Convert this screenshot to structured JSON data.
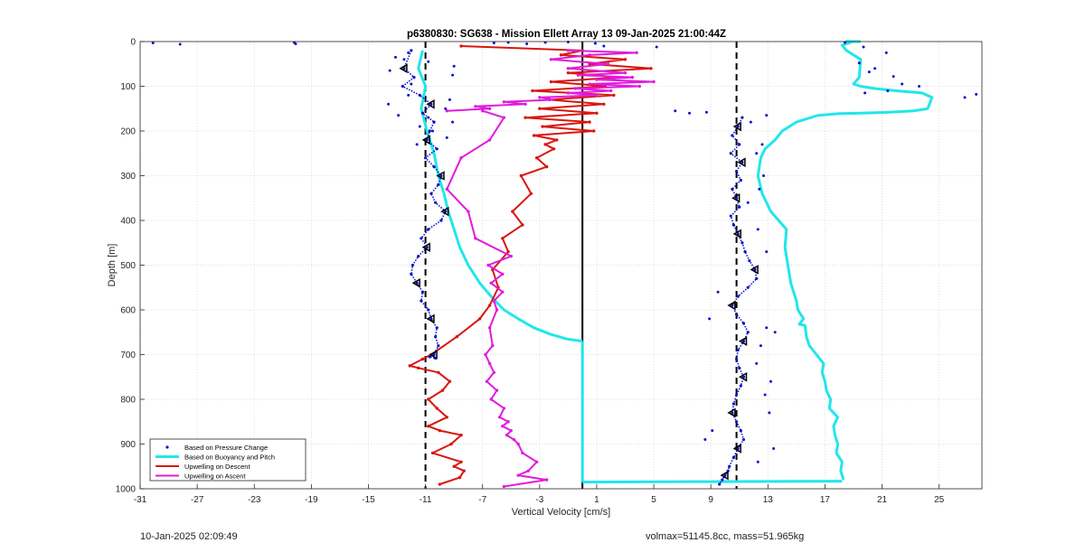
{
  "chart_data": {
    "type": "line",
    "title": "p6380830: SG638 - Mission Ellett Array 13 09-Jan-2025 21:00:44Z",
    "xlabel": "Vertical Velocity [cm/s]",
    "ylabel": "Depth [m]",
    "xlim": [
      -31,
      28
    ],
    "ylim": [
      0,
      1000
    ],
    "y_reversed": true,
    "xticks": [
      -31,
      -27,
      -23,
      -19,
      -15,
      -11,
      -7,
      -3,
      1,
      5,
      9,
      13,
      17,
      21,
      25
    ],
    "yticks": [
      0,
      100,
      200,
      300,
      400,
      500,
      600,
      700,
      800,
      900,
      1000
    ],
    "grid": "dotted",
    "legend_position": "bottom-left",
    "reference_lines": [
      {
        "x": -11,
        "style": "dashed",
        "color": "#000000"
      },
      {
        "x": 10.8,
        "style": "dashed",
        "color": "#000000"
      },
      {
        "x": 0,
        "style": "solid",
        "color": "#000000"
      }
    ],
    "series": [
      {
        "name": "Based on Pressure Change",
        "style": "dots",
        "color": "#0a14c8",
        "groups": [
          {
            "x": [
              -12,
              -12.5,
              -11.8,
              -12.6,
              -11.4,
              -10.6,
              -11.2,
              -10.4,
              -10.7,
              -10.9,
              -10.2,
              -11,
              -10.4,
              -9.9,
              -10.1,
              -10.6,
              -10.3,
              -9.6,
              -9.9,
              -10.8,
              -11.3,
              -10.9,
              -11.5,
              -11.9,
              -12,
              -11.6,
              -11.2,
              -11.3,
              -10.8,
              -10.6,
              -10.2,
              -10.3,
              -10.1,
              -10.4,
              -10.7,
              -10.3
            ],
            "y": [
              20,
              60,
              80,
              100,
              120,
              140,
              160,
              180,
              200,
              220,
              240,
              260,
              280,
              300,
              320,
              340,
              360,
              380,
              400,
              420,
              440,
              460,
              480,
              500,
              520,
              540,
              560,
              580,
              600,
              620,
              640,
              660,
              680,
              700,
              705,
              708
            ]
          },
          {
            "x": [
              11.2,
              10.9,
              10.5,
              11,
              10.4,
              11.2,
              10.8,
              11.1,
              10.5,
              10.8,
              11,
              10.4,
              10.6,
              10.9,
              11.2,
              11.4,
              11.7,
              12.1,
              12.2,
              11.6,
              10.9,
              10.5,
              10.8,
              11.3,
              11.6,
              11.3,
              10.9,
              10.8,
              11,
              11.3,
              11.1,
              10.8,
              10.6,
              10.5,
              10.8,
              11.1,
              11.3,
              10.9,
              10.6,
              10.3,
              10.2,
              10,
              9.8,
              9.6
            ],
            "y": [
              170,
              190,
              210,
              230,
              250,
              270,
              290,
              310,
              330,
              350,
              370,
              390,
              410,
              430,
              450,
              470,
              490,
              510,
              530,
              550,
              570,
              590,
              610,
              630,
              650,
              670,
              690,
              710,
              730,
              750,
              770,
              790,
              810,
              830,
              850,
              870,
              890,
              910,
              930,
              950,
              960,
              970,
              980,
              990
            ]
          }
        ],
        "scattered": {
          "x": [
            -30.1,
            -28.2,
            -20.2,
            -20.1,
            -12.5,
            -13.1,
            -13.5,
            -9,
            -12.2,
            -13.6,
            -12.9,
            -11.4,
            -9.3,
            -9.6,
            -10.8,
            -9.1,
            -10.5,
            -9.5,
            -11.6,
            -10.8,
            -12.2,
            -9.1,
            -12,
            -6.2,
            -5.2,
            -3.9,
            -2.6,
            -1,
            0.9,
            1.5,
            5.2,
            6.5,
            7.5,
            8.7,
            12.9,
            11.8,
            12.6,
            12.2,
            12.7,
            12.4,
            11.6,
            12.3,
            12.9,
            9.5,
            8.9,
            12.9,
            13.5,
            12.5,
            12.2,
            13.2,
            12.8,
            13.1,
            9.1,
            8.6,
            13.4,
            12.3,
            18.4,
            19.7,
            19.4,
            20.1,
            21.3,
            20.5,
            21.8,
            22.4,
            21.4,
            19.8,
            23.6,
            26.8,
            27.6
          ],
          "y": [
            3,
            6,
            2,
            5,
            40,
            35,
            65,
            55,
            120,
            140,
            165,
            190,
            130,
            150,
            170,
            180,
            200,
            215,
            230,
            45,
            25,
            75,
            95,
            3,
            2,
            5,
            2,
            1,
            4,
            10,
            12,
            155,
            160,
            158,
            165,
            180,
            230,
            250,
            300,
            330,
            360,
            420,
            470,
            560,
            620,
            640,
            650,
            680,
            720,
            760,
            790,
            830,
            870,
            890,
            910,
            940,
            2,
            12,
            48,
            68,
            25,
            60,
            78,
            95,
            110,
            115,
            100,
            125,
            118
          ]
        }
      },
      {
        "name": "Based on Buoyancy and Pitch",
        "style": "line",
        "color": "#22e6ea",
        "groups": [
          {
            "x": [
              -11.2,
              -11.5,
              -11,
              -11.3,
              -10.9,
              -10.4,
              -10.1,
              -9.7,
              -9.4,
              -9,
              -8.6,
              -8,
              -7.2,
              -6.4,
              -5.5,
              -4.5,
              -3.4,
              -2.2,
              -1.1,
              0
            ],
            "y": [
              20,
              60,
              100,
              150,
              200,
              250,
              300,
              340,
              380,
              420,
              460,
              500,
              540,
              570,
              600,
              620,
              640,
              655,
              665,
              670
            ]
          },
          {
            "x": [
              0,
              0,
              0,
              0,
              0,
              0,
              0,
              0
            ],
            "y": [
              670,
              720,
              770,
              820,
              870,
              920,
              970,
              985
            ]
          },
          {
            "x": [
              0,
              9,
              18.2
            ],
            "y": [
              985,
              984,
              983
            ]
          },
          {
            "x": [
              18.3,
              18.1,
              18.2,
              17.8,
              17.9,
              17.7,
              17.6,
              17.9,
              17.3,
              17.4,
              17.1,
              17,
              16.8,
              16.9,
              16.4,
              15.9,
              15.7,
              15.6,
              15.2,
              15.5,
              15.1,
              15,
              14.8,
              14.6,
              14.4,
              14.2,
              14.3,
              13.2,
              12.6,
              12.3,
              12.5,
              12.8,
              13.5,
              14,
              15,
              16.5,
              18,
              19.5,
              21.5,
              23.2,
              24.2,
              24.5,
              23.8,
              22,
              20.5,
              19.5,
              19,
              19.4,
              19.5,
              18.5,
              18.2,
              18.8,
              18.5,
              19.5
            ],
            "y": [
              980,
              960,
              940,
              920,
              900,
              880,
              860,
              840,
              820,
              800,
              780,
              760,
              740,
              720,
              700,
              680,
              660,
              635,
              632,
              620,
              600,
              580,
              560,
              540,
              500,
              460,
              420,
              380,
              340,
              300,
              260,
              240,
              220,
              200,
              180,
              165,
              161,
              160,
              158,
              155,
              150,
              125,
              115,
              110,
              105,
              100,
              95,
              80,
              40,
              20,
              8,
              2,
              0,
              0
            ]
          }
        ]
      },
      {
        "name": "Upwelling on Descent",
        "style": "line-with-markers",
        "color": "#d9160f",
        "groups": [
          {
            "x": [
              -8.5,
              0,
              -1.5,
              3,
              0.5,
              4.8,
              -1,
              2.5,
              -2.2,
              1.6,
              -3.5,
              2.2,
              -2.3,
              1.5,
              -3,
              1,
              -4,
              0.5,
              -2.8,
              0.8,
              -3.4,
              -1.8,
              -2.6,
              -2,
              -3.2,
              -2.5,
              -4.3,
              -3.6,
              -4.9,
              -4.2,
              -5.6,
              -5.2,
              -6.3,
              -5.9,
              -6.5,
              -7.2,
              -8.8,
              -10.6,
              -11.2,
              -12.1,
              -11.5,
              -10.1,
              -9.3,
              -9.8,
              -10.8,
              -10.2,
              -9.5,
              -10.8,
              -10,
              -8.5,
              -9.2,
              -10.5,
              -8.5,
              -9,
              -8.3,
              -8.6,
              -10
            ],
            "y": [
              10,
              20,
              30,
              40,
              50,
              60,
              70,
              80,
              90,
              100,
              110,
              120,
              130,
              140,
              150,
              160,
              170,
              180,
              190,
              200,
              210,
              220,
              230,
              240,
              260,
              280,
              300,
              340,
              380,
              410,
              440,
              470,
              510,
              550,
              590,
              620,
              660,
              700,
              710,
              725,
              730,
              740,
              760,
              780,
              800,
              820,
              840,
              860,
              870,
              880,
              900,
              920,
              940,
              950,
              960,
              975,
              990
            ]
          }
        ]
      },
      {
        "name": "Upwelling on Ascent",
        "style": "line-with-markers",
        "color": "#e01cdc",
        "groups": [
          {
            "x": [
              -5.5,
              -2.5,
              -4.5,
              -3.8,
              -3.2,
              -4.2,
              -4.5,
              -4.8,
              -5.3,
              -5,
              -5.6,
              -5.2,
              -5.8,
              -5.5,
              -6.4,
              -6,
              -6.7,
              -6.2,
              -6.5,
              -6.8,
              -6.3,
              -6.5,
              -6,
              -6.2,
              -5.6,
              -6.4,
              -5.6,
              -6.6,
              -5,
              -7.5,
              -8,
              -9.5,
              -8.5,
              -6.5,
              -5.5,
              -7
            ],
            "y": [
              995,
              980,
              970,
              960,
              940,
              920,
              900,
              890,
              880,
              870,
              860,
              850,
              840,
              820,
              800,
              780,
              760,
              740,
              720,
              700,
              680,
              640,
              600,
              580,
              560,
              540,
              520,
              500,
              480,
              440,
              380,
              330,
              260,
              220,
              170,
              155
            ]
          },
          {
            "x": [
              -9.5,
              -6.5,
              -7.5,
              -4,
              -5.5,
              -2,
              -3,
              1,
              -1,
              2,
              -0.5,
              4,
              0.5,
              5,
              1,
              3.5,
              -0.3,
              3,
              -1,
              1.8,
              -2.2,
              0.5,
              3.8,
              -1
            ],
            "y": [
              155,
              150,
              145,
              140,
              135,
              130,
              125,
              120,
              115,
              110,
              105,
              100,
              95,
              90,
              85,
              80,
              75,
              70,
              60,
              50,
              40,
              30,
              25,
              20
            ]
          }
        ]
      }
    ],
    "legend": [
      "Based on Pressure Change",
      "Based on Buoyancy and Pitch",
      "Upwelling on Descent",
      "Upwelling on Ascent"
    ],
    "footer_left": "10-Jan-2025 02:09:49",
    "footer_right": "volmax=51145.8cc, mass=51.965kg"
  }
}
